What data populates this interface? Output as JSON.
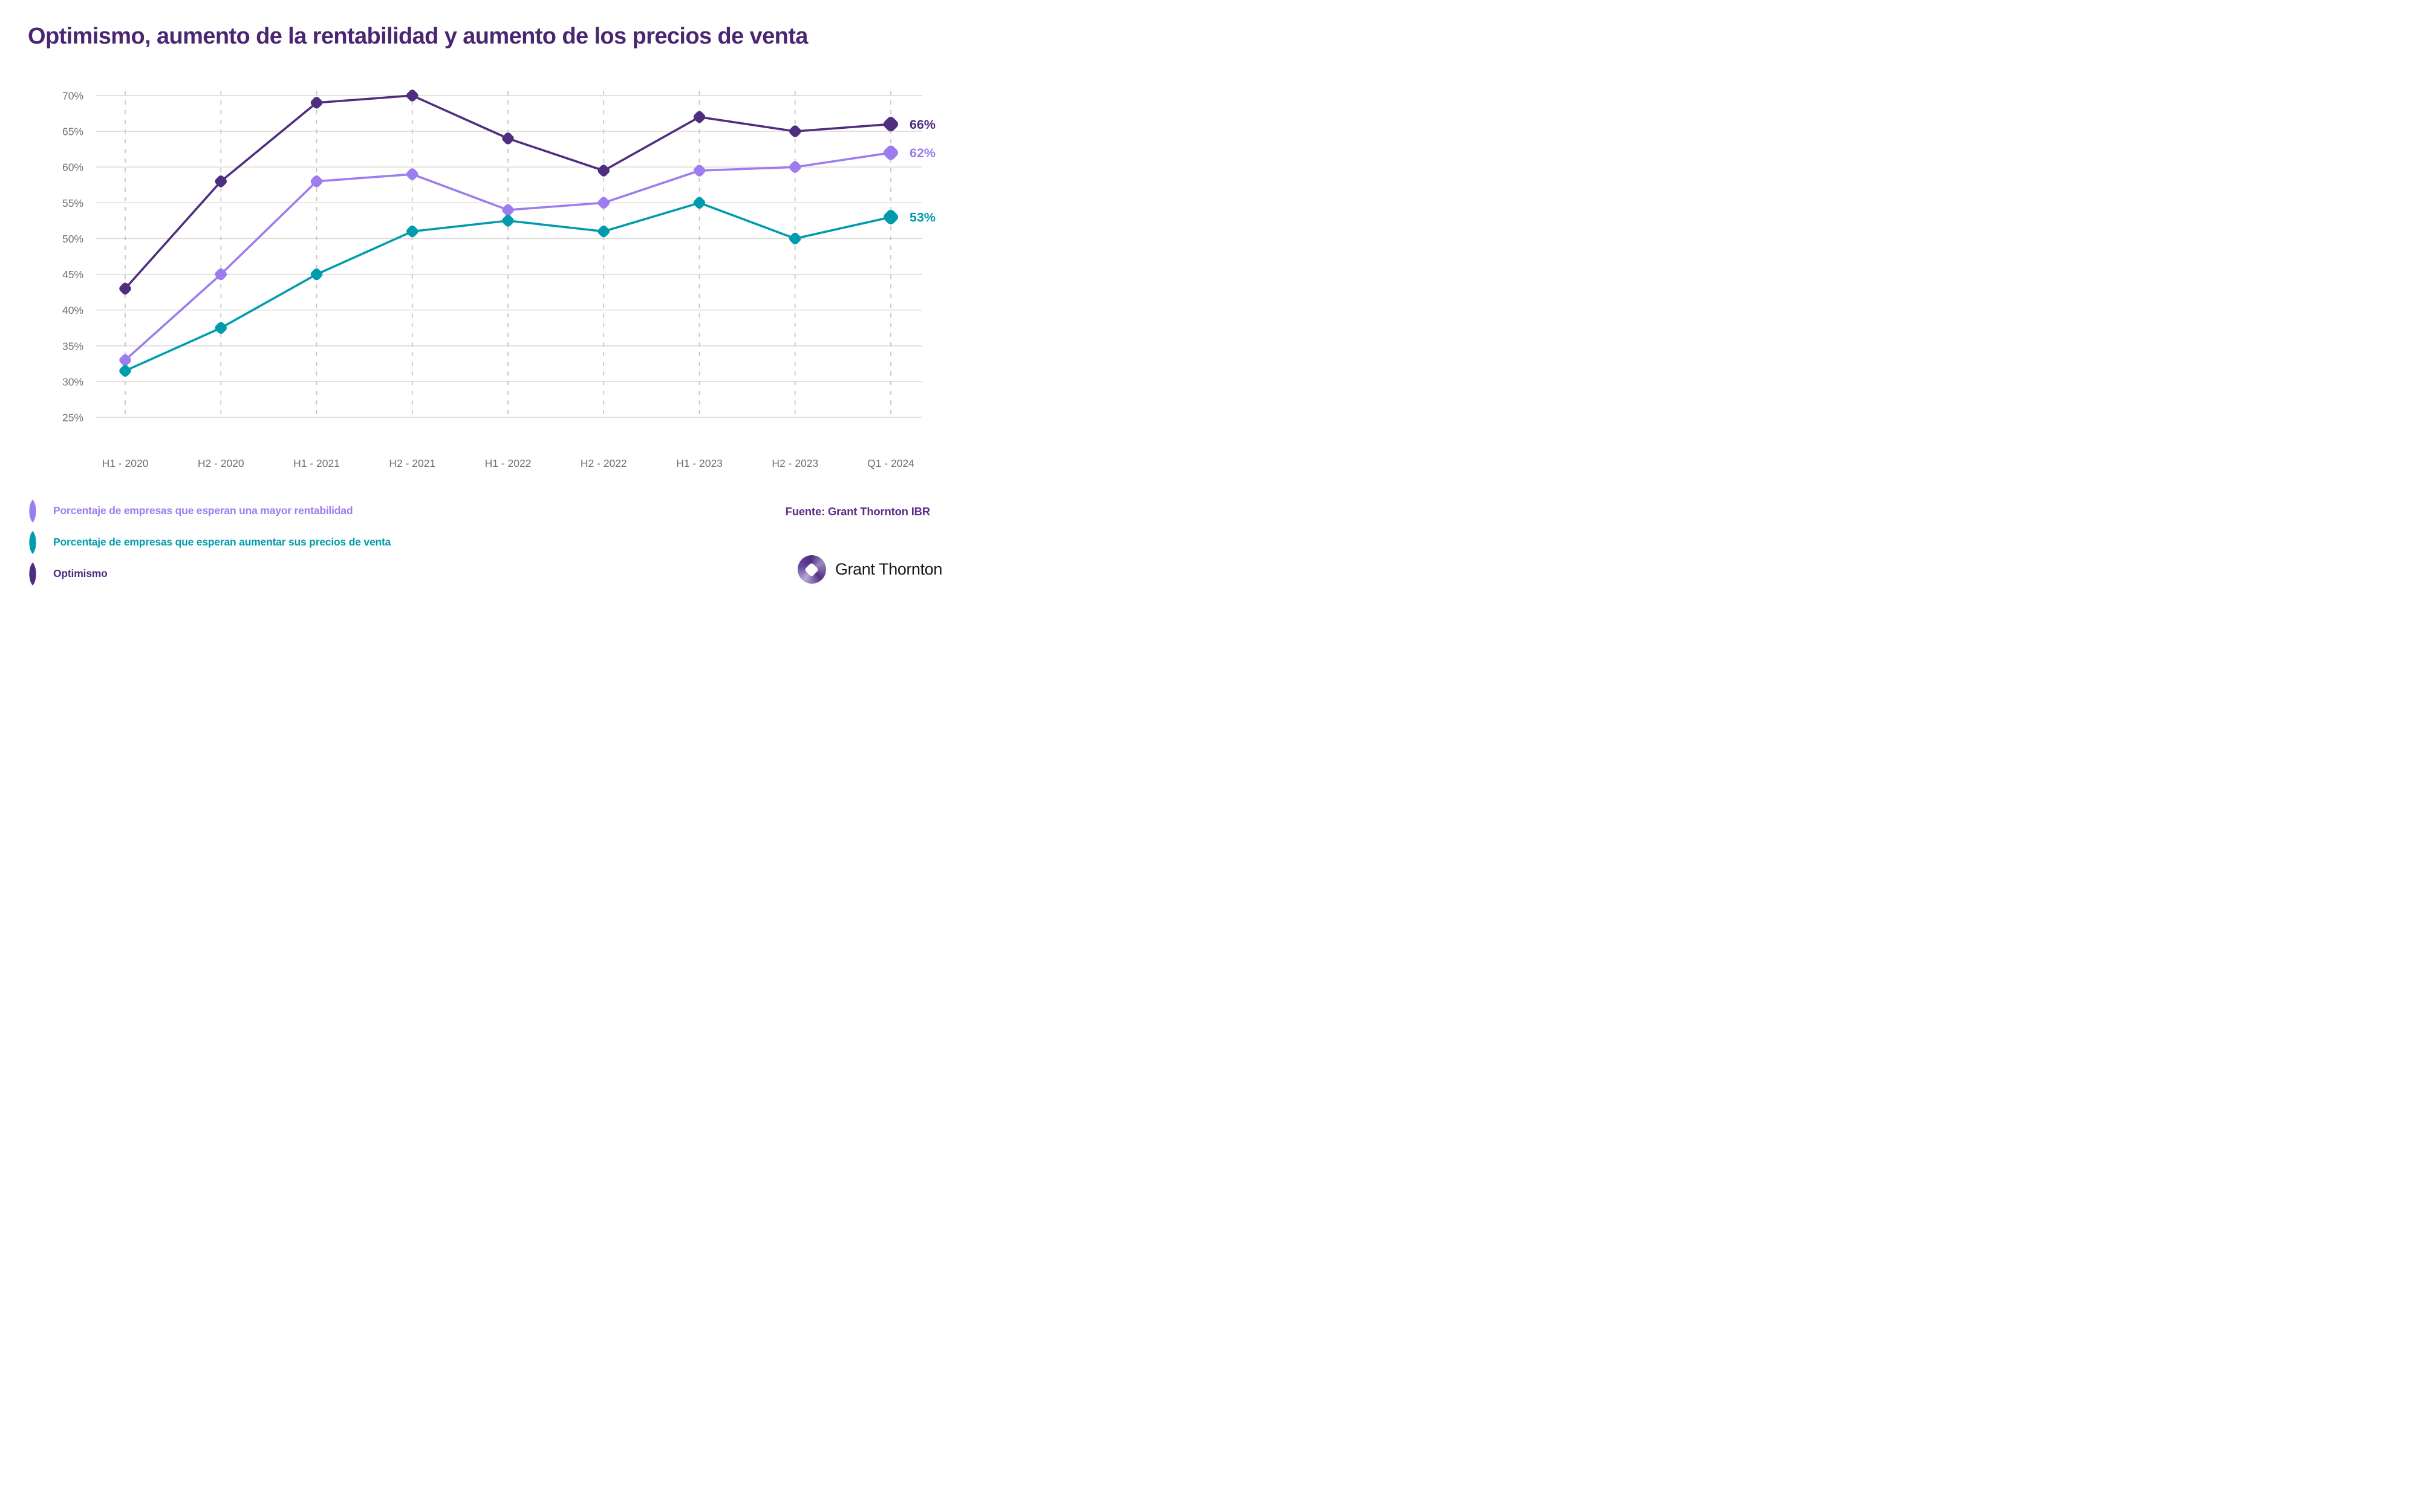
{
  "title": "Optimismo, aumento de la rentabilidad y aumento de los precios de venta",
  "source_note": "Fuente: Grant Thornton IBR",
  "logo": {
    "icon": "gt-swirl",
    "text": "Grant Thornton"
  },
  "colors": {
    "title": "#4a2672",
    "source": "#5b2e87",
    "optimism": "#4f2d7f",
    "profitability": "#9c7cee",
    "prices": "#009cad",
    "grid": "#dbd7d2",
    "grid_dash": "#ccc5bf",
    "axis_label": "#6e6e6e"
  },
  "legend": [
    {
      "label": "Porcentaje de empresas que esperan una mayor rentabilidad",
      "color_key": "profitability"
    },
    {
      "label": "Porcentaje de empresas que esperan aumentar sus precios de venta",
      "color_key": "prices"
    },
    {
      "label": "Optimismo",
      "color_key": "optimism"
    }
  ],
  "chart_data": {
    "type": "line",
    "title": "Optimismo, aumento de la rentabilidad y aumento de los precios de venta",
    "categories": [
      "H1 - 2020",
      "H2 - 2020",
      "H1 - 2021",
      "H2 - 2021",
      "H1 - 2022",
      "H2 - 2022",
      "H1 - 2023",
      "H2 - 2023",
      "Q1 - 2024"
    ],
    "y_ticks": [
      "70%",
      "65%",
      "60%",
      "55%",
      "50%",
      "45%",
      "40%",
      "35%",
      "30%",
      "25%"
    ],
    "ylim": [
      25,
      70
    ],
    "grid": "horizontal solid, vertical dashed per category",
    "legend_position": "bottom-left",
    "series": [
      {
        "name": "Porcentaje de empresas que esperan una mayor rentabilidad",
        "color_key": "profitability",
        "values": [
          33,
          45,
          58,
          59,
          54,
          55,
          59.5,
          60,
          62
        ],
        "end_label": "62%"
      },
      {
        "name": "Porcentaje de empresas que esperan aumentar sus precios de venta",
        "color_key": "prices",
        "values": [
          31.5,
          37.5,
          45,
          51,
          52.5,
          51,
          55,
          50,
          53
        ],
        "end_label": "53%"
      },
      {
        "name": "Optimismo",
        "color_key": "optimism",
        "values": [
          43,
          58,
          69,
          70,
          64,
          59.5,
          67,
          65,
          66
        ],
        "end_label": "66%"
      }
    ]
  }
}
